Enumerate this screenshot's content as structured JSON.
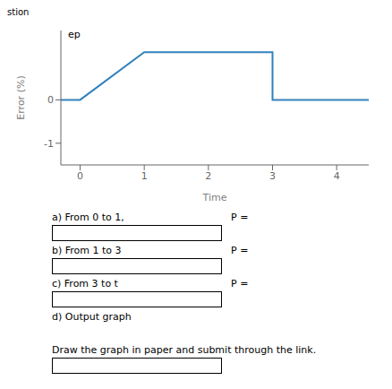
{
  "chart_data": {
    "type": "line",
    "x": [
      -0.3,
      0,
      1,
      3,
      3,
      4.5
    ],
    "values": [
      0.0,
      0.0,
      1.1,
      1.1,
      0.0,
      0.0
    ],
    "xlim": [
      -0.3,
      4.5
    ],
    "ylim": [
      -1.5,
      1.6
    ],
    "xticks": [
      0,
      1,
      2,
      3,
      4
    ],
    "yticks": [
      -1,
      0
    ],
    "x_label": "Time",
    "y_label": "Error (%)",
    "annotations": [
      "ep",
      "stion",
      "a) From 0 to 1,",
      "P =",
      "b) From 1 to 3",
      "P =",
      "c) From 3 to t",
      "P =",
      "d) Output graph",
      "Draw the graph in paper and submit through the link."
    ]
  }
}
